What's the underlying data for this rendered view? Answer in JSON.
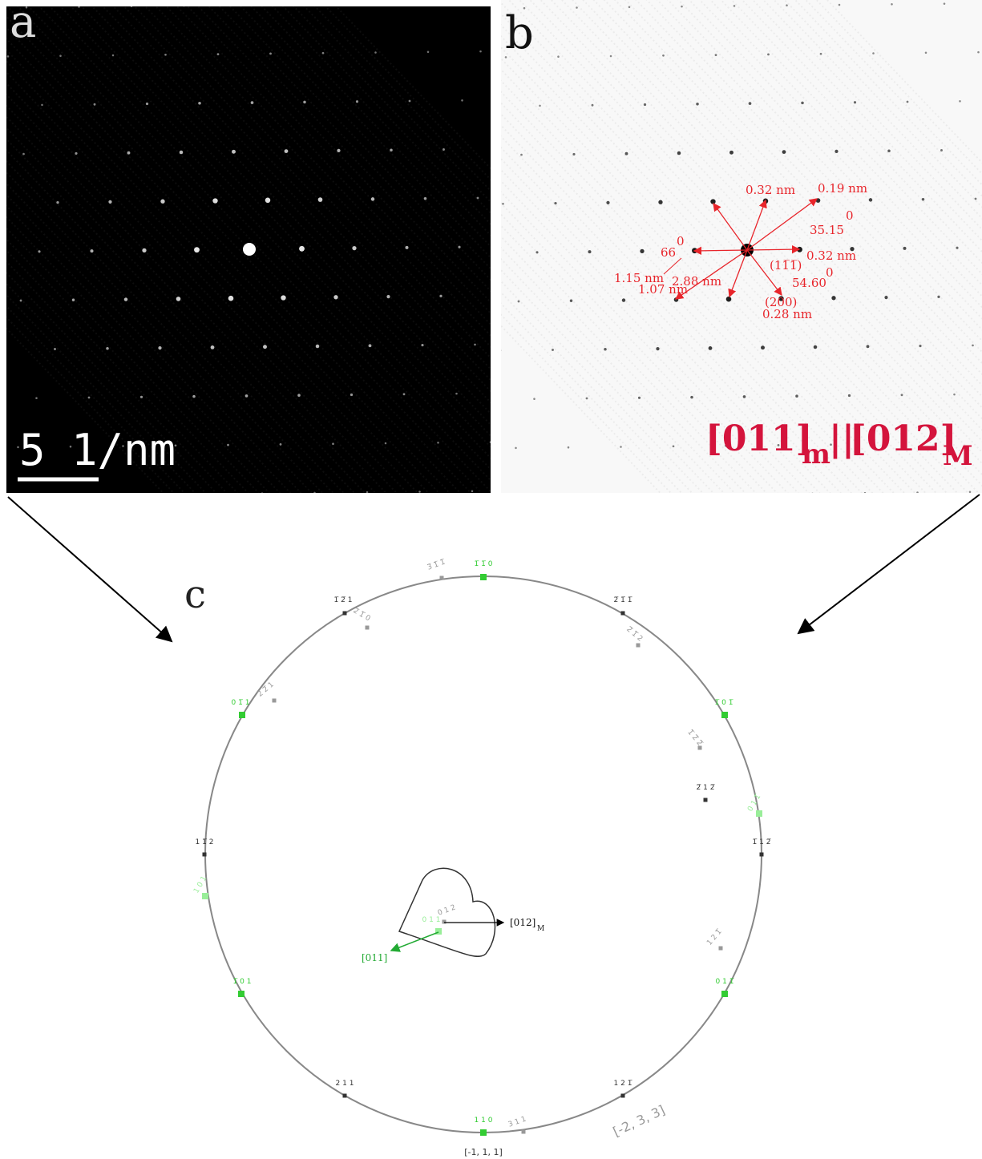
{
  "panel_a": {
    "label": "a",
    "scale_bar": "5 1/nm"
  },
  "panel_b": {
    "label": "b",
    "annotations": [
      "0.32 nm",
      "0.19 nm",
      "35.15",
      "0",
      "(11̅1̅)",
      "0.32 nm",
      "54.60",
      "0",
      "(200)",
      "0.28 nm",
      "66",
      "0",
      "1.15 nm",
      "2.88 nm",
      "1.07 nm"
    ],
    "zone_title": {
      "first": "[011]",
      "first_sub": "m",
      "separator": "||",
      "second": "[012]",
      "second_sub": "M"
    }
  },
  "panel_c": {
    "label": "c",
    "poles": [
      "1̅ 1̅ 0",
      "3̅ 1̅ 1̅",
      "1̅ 2̅ 1",
      "2̅ 1̅ 0",
      "2̅ 1̅ 1̅",
      "2̅ 1̅ 2",
      "0 1̅ 1",
      "2̅ 2̅ 1",
      "1̅ 0 1̅",
      "1̅ 2̅ 2̅",
      "2̅ 1 2̅",
      "0 1 1̅",
      "1 1̅ 2",
      "1̅ 1 2̅",
      "1 0 1",
      "1 2 1̅",
      "1̅ 0 1",
      "0 1 1̅",
      "2 1 1",
      "1 2 1̅",
      "1 1 0",
      "3 1 1",
      "0 1 1",
      "0 1 2"
    ],
    "zone_011": "[011]",
    "zone_012": "[012]",
    "zone_012_sub": "M",
    "bottom_direction": "[-1, 1, 1]",
    "corner_direction": "[-2, 3, 3]"
  }
}
